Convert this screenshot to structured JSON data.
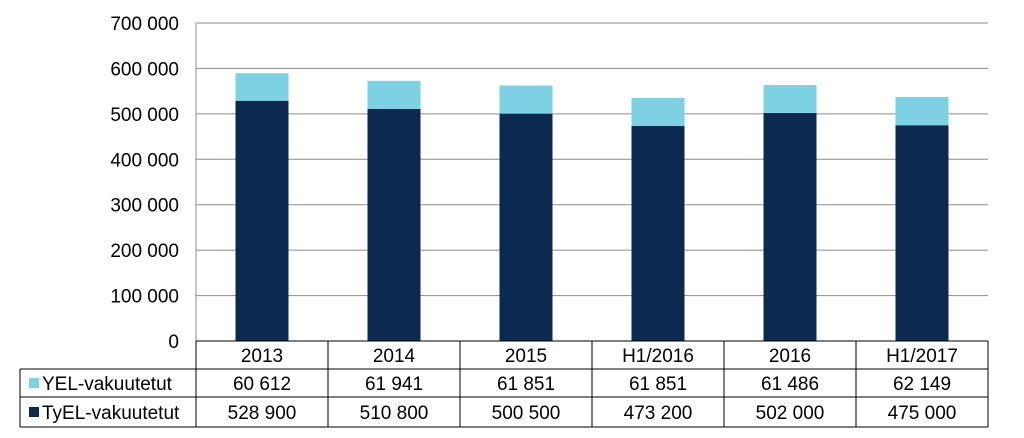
{
  "chart_data": {
    "type": "bar",
    "stacked": true,
    "title": "",
    "xlabel": "",
    "ylabel": "",
    "ylim": [
      0,
      700000
    ],
    "yticks": [
      0,
      100000,
      200000,
      300000,
      400000,
      500000,
      600000,
      700000
    ],
    "ytick_labels": [
      "0",
      "100 000",
      "200 000",
      "300 000",
      "400 000",
      "500 000",
      "600 000",
      "700 000"
    ],
    "grid": true,
    "legend": "data-table-left",
    "categories": [
      "2013",
      "2014",
      "2015",
      "H1/2016",
      "2016",
      "H1/2017"
    ],
    "series": [
      {
        "name": "TyEL-vakuutetut",
        "color": "#0c2a4f",
        "values": [
          528900,
          510800,
          500500,
          473200,
          502000,
          475000
        ],
        "labels": [
          "528 900",
          "510 800",
          "500 500",
          "473 200",
          "502 000",
          "475 000"
        ]
      },
      {
        "name": "YEL-vakuutetut",
        "color": "#7ed1e3",
        "values": [
          60612,
          61941,
          61851,
          61851,
          61486,
          62149
        ],
        "labels": [
          "60 612",
          "61 941",
          "61 851",
          "61 851",
          "61 486",
          "62 149"
        ]
      }
    ]
  }
}
